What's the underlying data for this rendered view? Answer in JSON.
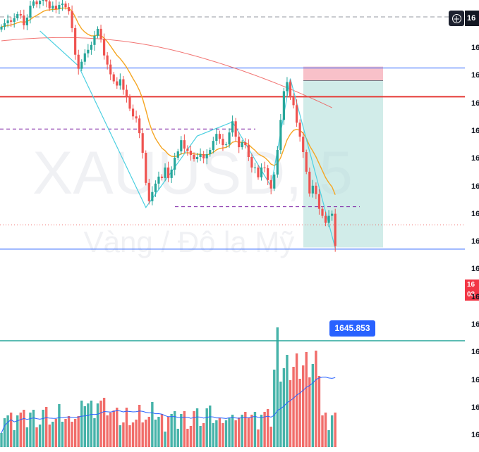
{
  "symbol_watermark": "XAUUSD, 5",
  "description_watermark": "Vàng / Đô la Mỹ",
  "top_price_label": "16",
  "current_price_label": "16\n03",
  "target_price_badge": "1645.853",
  "axis_tick_labels": [
    "16",
    "16",
    "16",
    "16",
    "16",
    "16",
    "16",
    "16",
    "16",
    "16",
    "16",
    "16",
    "16",
    "16",
    "16"
  ],
  "colors": {
    "up": "#26a69a",
    "down": "#ef5350",
    "ema_fast": "#f5a623",
    "ema_slow": "#ef5350",
    "volume_ma": "#2962ff",
    "stop_zone": "#f7b6c0",
    "target_zone": "#b2dfdb",
    "zigzag": "#4dd0e1"
  },
  "chart_data": {
    "type": "candlestick",
    "symbol": "XAUUSD, 5",
    "description": "Vàng / Đô la Mỹ",
    "y_range": [
      1645,
      1680
    ],
    "open": [
      1677.2,
      1677.6,
      1678.1,
      1678.5,
      1678.3,
      1678.8,
      1679.4,
      1679.2,
      1677.8,
      1678.9,
      1680.6,
      1681.2,
      1680.8,
      1681.3,
      1681.6,
      1681.2,
      1680.2,
      1680.6,
      1680.1,
      1680.7,
      1680.9,
      1680.4,
      1679.8,
      1677.4,
      1673.6,
      1671.6,
      1672.6,
      1673.8,
      1674.3,
      1675.0,
      1676.3,
      1677.3,
      1675.8,
      1673.5,
      1672.2,
      1670.8,
      1669.8,
      1669.2,
      1670.1,
      1668.6,
      1667.6,
      1665.9,
      1664.8,
      1664.5,
      1662.4,
      1659.6,
      1655.3,
      1652.7,
      1654.0,
      1655.2,
      1656.2,
      1656.0,
      1657.5,
      1656.0,
      1657.2,
      1658.9,
      1659.8,
      1661.4,
      1660.2,
      1659.9,
      1659.3,
      1658.7,
      1659.0,
      1659.4,
      1658.8,
      1659.4,
      1660.0,
      1661.3,
      1662.3,
      1661.6,
      1660.7,
      1660.8,
      1662.5,
      1664.1,
      1661.9,
      1660.4,
      1661.1,
      1660.7,
      1659.0,
      1657.5,
      1657.5,
      1656.1,
      1657.5,
      1657.4,
      1655.7,
      1654.5,
      1656.5,
      1660.0,
      1664.3,
      1668.4,
      1669.7,
      1667.5,
      1666.4,
      1663.9,
      1661.9,
      1659.7,
      1656.9,
      1653.8,
      1654.9,
      1653.7,
      1651.6,
      1650.6,
      1649.6,
      1650.6,
      1650.9
    ],
    "close": [
      1677.6,
      1678.1,
      1678.5,
      1678.3,
      1678.8,
      1679.4,
      1679.2,
      1677.8,
      1678.9,
      1680.6,
      1681.2,
      1680.8,
      1681.3,
      1681.6,
      1681.2,
      1680.2,
      1680.6,
      1680.1,
      1680.7,
      1680.9,
      1680.4,
      1679.8,
      1677.4,
      1673.6,
      1671.6,
      1672.6,
      1673.8,
      1674.3,
      1675.0,
      1676.3,
      1677.3,
      1675.8,
      1673.5,
      1672.2,
      1670.8,
      1669.8,
      1669.2,
      1670.1,
      1668.6,
      1667.6,
      1665.9,
      1664.8,
      1664.5,
      1662.4,
      1659.6,
      1655.3,
      1652.7,
      1654.0,
      1655.2,
      1656.2,
      1656.0,
      1657.5,
      1656.0,
      1657.2,
      1658.9,
      1659.8,
      1661.4,
      1660.2,
      1659.9,
      1659.3,
      1658.7,
      1659.0,
      1659.4,
      1658.8,
      1659.4,
      1660.0,
      1661.3,
      1662.3,
      1661.6,
      1660.7,
      1660.8,
      1662.5,
      1664.1,
      1661.9,
      1660.4,
      1661.1,
      1660.7,
      1659.0,
      1657.5,
      1657.5,
      1656.1,
      1657.5,
      1657.4,
      1655.7,
      1654.5,
      1656.5,
      1660.0,
      1664.3,
      1668.4,
      1669.7,
      1667.5,
      1666.4,
      1663.9,
      1661.9,
      1659.7,
      1656.9,
      1653.8,
      1654.9,
      1653.7,
      1651.6,
      1650.6,
      1649.6,
      1650.6,
      1650.9,
      1646.3
    ],
    "volume_ma_label": "",
    "zigzag_points": [
      [
        12,
        1677.0
      ],
      [
        24,
        1672.0
      ],
      [
        45,
        1651.8
      ],
      [
        61,
        1662.0
      ],
      [
        72,
        1664.0
      ],
      [
        84,
        1654.8
      ],
      [
        90,
        1670.2
      ],
      [
        104,
        1646.0
      ]
    ],
    "horizontal_levels": [
      {
        "price": 1679.0,
        "style": "dashed",
        "color": "#9598a1"
      },
      {
        "price": 1671.7,
        "style": "solid",
        "color": "#2962ff"
      },
      {
        "price": 1667.6,
        "style": "solid",
        "color": "#e53935"
      },
      {
        "price": 1663.0,
        "style": "dashed",
        "color": "#7b1fa2"
      },
      {
        "price": 1651.9,
        "style": "dashed",
        "color": "#7b1fa2"
      },
      {
        "price": 1649.3,
        "style": "dotted",
        "color": "#ef5350"
      },
      {
        "price": 1645.85,
        "style": "solid",
        "color": "#2962ff"
      }
    ],
    "short_position": {
      "entry": 1669.9,
      "stop": 1671.9,
      "target": 1646.1
    },
    "target_price": 1645.853
  }
}
